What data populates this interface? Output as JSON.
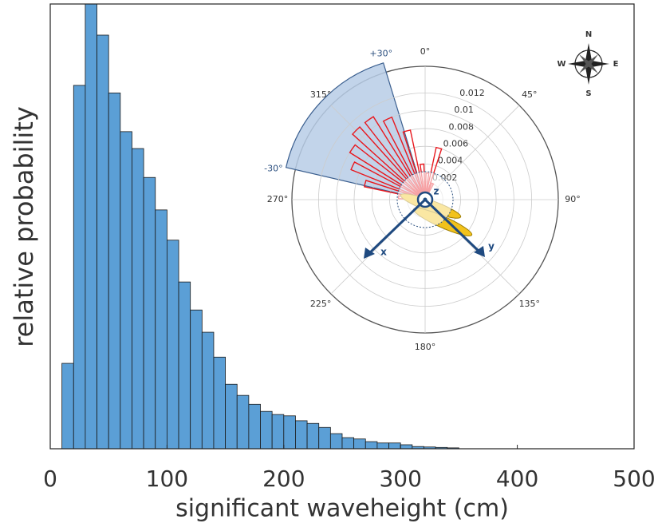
{
  "chart_data": [
    {
      "type": "histogram",
      "xlabel": "significant waveheight (cm)",
      "ylabel": "relative probability",
      "bins": [
        10,
        20,
        30,
        40,
        50,
        60,
        70,
        80,
        90,
        100,
        110,
        120,
        130,
        140,
        150,
        160,
        170,
        180,
        190,
        200,
        210,
        220,
        230,
        240,
        250,
        260,
        270,
        280,
        290,
        300,
        310,
        320,
        330,
        340,
        350
      ],
      "values": [
        19.2,
        81.7,
        100,
        93,
        80,
        71.3,
        67.5,
        61,
        53.7,
        46.9,
        37.5,
        31.2,
        26.2,
        20.6,
        14.5,
        12,
        10,
        8.4,
        7.7,
        7.4,
        6.3,
        5.7,
        4.8,
        3.4,
        2.5,
        2.2,
        1.6,
        1.3,
        1.3,
        0.9,
        0.5,
        0.4,
        0.3,
        0.2
      ],
      "color": "#5b9fd6",
      "xlim": [
        0,
        500
      ],
      "xticks": [
        0,
        100,
        200,
        300,
        400,
        500
      ],
      "ylim": [
        0,
        100
      ]
    },
    {
      "type": "polar-bar",
      "angles": [
        275,
        285,
        295,
        305,
        315,
        325,
        335,
        345,
        355,
        5,
        15,
        25
      ],
      "values": [
        0.003,
        0.007,
        0.009,
        0.01,
        0.011,
        0.011,
        0.01,
        0.008,
        0.004,
        0.003,
        0.006,
        0.002
      ],
      "color": "#e8181e",
      "rlim": [
        0,
        0.015
      ],
      "rticks": [
        0.002,
        0.004,
        0.006,
        0.008,
        0.01,
        0.012
      ],
      "thetaticks": [
        {
          "value": 0,
          "label": "0°"
        },
        {
          "value": 45,
          "label": "45°"
        },
        {
          "value": 90,
          "label": "90°"
        },
        {
          "value": 135,
          "label": "135°"
        },
        {
          "value": 180,
          "label": "180°"
        },
        {
          "value": 225,
          "label": "225°"
        },
        {
          "value": 270,
          "label": "270°"
        },
        {
          "value": 315,
          "label": "315°"
        }
      ],
      "sector": {
        "from": 283,
        "to": 343,
        "labels": [
          "-30°",
          "+30°"
        ]
      },
      "axis_names": [
        "x",
        "y",
        "z"
      ],
      "compass": [
        "N",
        "E",
        "S",
        "W"
      ]
    }
  ]
}
